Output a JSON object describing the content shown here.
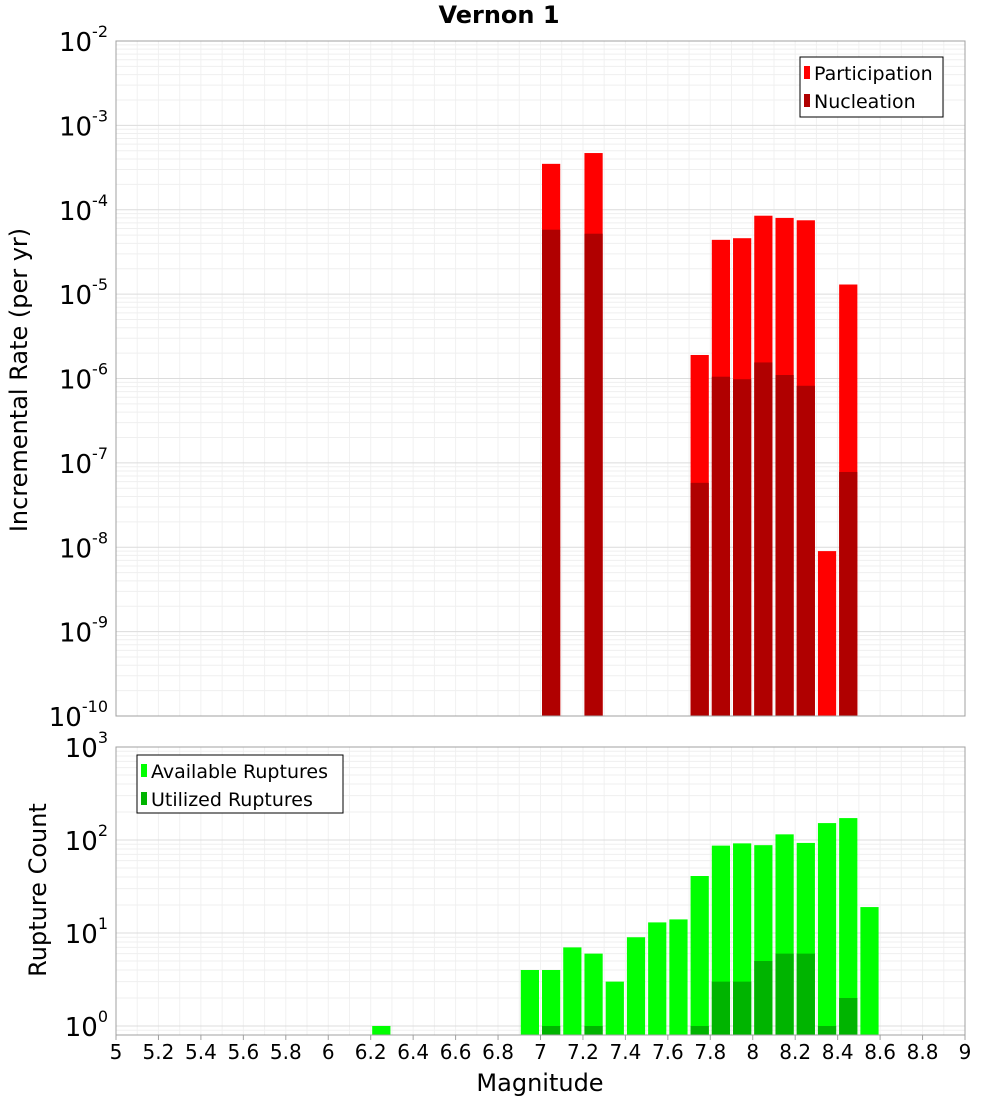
{
  "chart_data": [
    {
      "type": "bar",
      "title": "Vernon 1",
      "xlabel": "Magnitude",
      "ylabel": "Incremental Rate (per yr)",
      "yscale": "log",
      "xlim": [
        5,
        9
      ],
      "ylim": [
        1e-10,
        0.01
      ],
      "grid": true,
      "legend_position": "top-right",
      "bin_width": 0.1,
      "x": [
        7.05,
        7.25,
        7.75,
        7.85,
        7.95,
        8.05,
        8.15,
        8.25,
        8.35,
        8.45
      ],
      "series": [
        {
          "name": "Participation",
          "color": "#ff0000",
          "values": [
            0.00035,
            0.00047,
            1.9e-06,
            4.4e-05,
            4.6e-05,
            8.5e-05,
            8e-05,
            7.5e-05,
            9e-09,
            1.3e-05
          ]
        },
        {
          "name": "Nucleation",
          "color": "#b00000",
          "values": [
            5.8e-05,
            5.2e-05,
            5.8e-08,
            1.05e-06,
            9.8e-07,
            1.55e-06,
            1.1e-06,
            8.2e-07,
            null,
            7.8e-08
          ]
        }
      ],
      "y_ticks": [
        "10^-10",
        "10^-9",
        "10^-8",
        "10^-7",
        "10^-6",
        "10^-5",
        "10^-4",
        "10^-3",
        "10^-2"
      ]
    },
    {
      "type": "bar",
      "xlabel": "Magnitude",
      "ylabel": "Rupture Count",
      "yscale": "log",
      "xlim": [
        5,
        9
      ],
      "ylim": [
        0.8,
        1000
      ],
      "grid": true,
      "legend_position": "top-left",
      "bin_width": 0.1,
      "x": [
        6.25,
        6.95,
        7.05,
        7.15,
        7.25,
        7.35,
        7.45,
        7.55,
        7.65,
        7.75,
        7.85,
        7.95,
        8.05,
        8.15,
        8.25,
        8.35,
        8.45,
        8.55
      ],
      "series": [
        {
          "name": "Available Ruptures",
          "color": "#00ff00",
          "values": [
            1,
            4,
            4,
            7,
            6,
            3,
            9,
            13,
            14,
            41,
            87,
            92,
            88,
            115,
            93,
            152,
            172,
            19
          ]
        },
        {
          "name": "Utilized Ruptures",
          "color": "#00b400",
          "values": [
            null,
            null,
            1,
            null,
            1,
            null,
            null,
            null,
            null,
            1,
            3,
            3,
            5,
            6,
            6,
            1,
            2,
            null
          ]
        }
      ],
      "y_ticks": [
        "10^0",
        "10^1",
        "10^2",
        "10^3"
      ],
      "x_ticks": [
        "5",
        "5.2",
        "5.4",
        "5.6",
        "5.8",
        "6",
        "6.2",
        "6.4",
        "6.6",
        "6.8",
        "7",
        "7.2",
        "7.4",
        "7.6",
        "7.8",
        "8",
        "8.2",
        "8.4",
        "8.6",
        "8.8",
        "9"
      ]
    }
  ]
}
